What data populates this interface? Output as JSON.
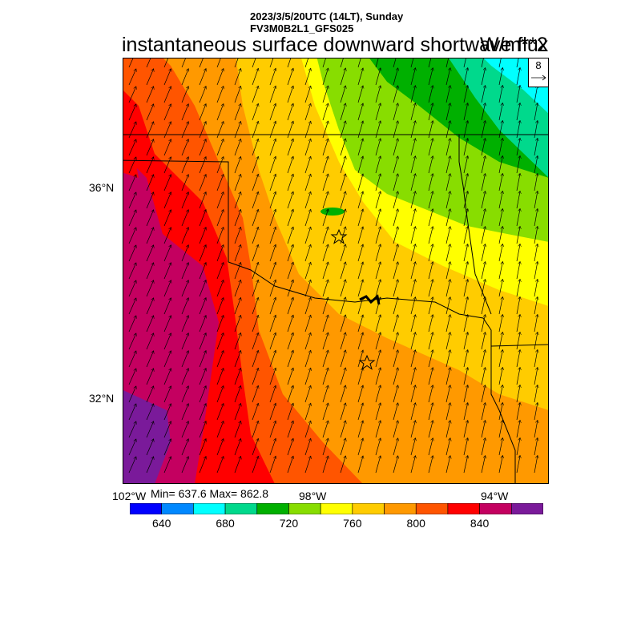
{
  "header": {
    "line1": "2023/3/5/20UTC (14LT), Sunday",
    "line2": "FV3M0B2L1_GFS025"
  },
  "title": "instantaneous surface downward shortwave flux",
  "units": "W/m**2",
  "reference_vector": {
    "label": "8",
    "icon": "arrow-right-icon"
  },
  "axes": {
    "lat_labels": [
      "36°N",
      "32°N"
    ],
    "lon_labels": [
      "102°W",
      "98°W",
      "94°W"
    ]
  },
  "stats": {
    "text": "Min= 637.6 Max= 862.8",
    "min": 637.6,
    "max": 862.8
  },
  "colorbar": {
    "colors": [
      "#0000ff",
      "#0088ff",
      "#00ffff",
      "#00d98c",
      "#00b000",
      "#88dd00",
      "#ffff00",
      "#ffcc00",
      "#ff9900",
      "#ff5500",
      "#ff0000",
      "#c40060",
      "#7a1a9a"
    ],
    "tick_labels": [
      "640",
      "680",
      "720",
      "760",
      "800",
      "840"
    ],
    "tick_values": [
      640,
      680,
      720,
      760,
      800,
      840
    ]
  },
  "markers": {
    "icon": "star-icon",
    "count": 2
  }
}
